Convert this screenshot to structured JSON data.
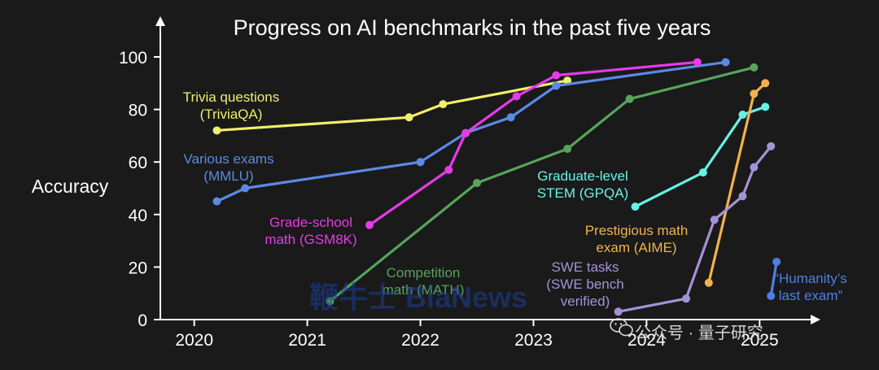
{
  "chart_data": {
    "type": "line",
    "title": "Progress on AI benchmarks in the past five years",
    "ylabel": "Accuracy",
    "xlabel": "",
    "xlim": [
      2019.7,
      2025.3
    ],
    "ylim": [
      0,
      100
    ],
    "x_ticks": [
      "2020",
      "2021",
      "2022",
      "2023",
      "2024",
      "2025"
    ],
    "y_ticks": [
      "0",
      "20",
      "40",
      "60",
      "80",
      "100"
    ],
    "grid": false,
    "series": [
      {
        "name": "Trivia questions\n(TriviaQA)",
        "color": "#f2ee6b",
        "points": [
          [
            2020.2,
            72
          ],
          [
            2021.9,
            77
          ],
          [
            2022.2,
            82
          ],
          [
            2023.3,
            91
          ]
        ]
      },
      {
        "name": "Various exams\n(MMLU)",
        "color": "#5b8ae6",
        "points": [
          [
            2020.2,
            45
          ],
          [
            2020.45,
            50
          ],
          [
            2022.0,
            60
          ],
          [
            2022.4,
            71
          ],
          [
            2022.8,
            77
          ],
          [
            2023.2,
            89
          ],
          [
            2024.7,
            98
          ]
        ]
      },
      {
        "name": "Grade-school\nmath (GSM8K)",
        "color": "#e63be6",
        "points": [
          [
            2021.55,
            36
          ],
          [
            2022.25,
            57
          ],
          [
            2022.4,
            71
          ],
          [
            2022.85,
            85
          ],
          [
            2023.2,
            93
          ],
          [
            2024.45,
            98
          ]
        ]
      },
      {
        "name": "Competition\nmath (MATH)",
        "color": "#56a55a",
        "points": [
          [
            2021.2,
            7
          ],
          [
            2022.5,
            52
          ],
          [
            2023.3,
            65
          ],
          [
            2023.85,
            84
          ],
          [
            2024.95,
            96
          ]
        ]
      },
      {
        "name": "Graduate-level\nSTEM (GPQA)",
        "color": "#66f2e6",
        "points": [
          [
            2023.9,
            43
          ],
          [
            2024.5,
            56
          ],
          [
            2024.85,
            78
          ],
          [
            2025.05,
            81
          ]
        ]
      },
      {
        "name": "Prestigious math\nexam (AIME)",
        "color": "#f2b24d",
        "points": [
          [
            2024.55,
            14
          ],
          [
            2024.95,
            86
          ],
          [
            2025.05,
            90
          ]
        ]
      },
      {
        "name": "SWE tasks\n(SWE bench\nverified)",
        "color": "#a492d6",
        "points": [
          [
            2023.75,
            3
          ],
          [
            2024.35,
            8
          ],
          [
            2024.6,
            38
          ],
          [
            2024.85,
            47
          ],
          [
            2024.95,
            58
          ],
          [
            2025.1,
            66
          ]
        ]
      },
      {
        "name": "“Humanity’s\nlast exam”",
        "color": "#4d7fe6",
        "points": [
          [
            2025.1,
            9
          ],
          [
            2025.15,
            22
          ]
        ]
      }
    ]
  },
  "watermarks": {
    "blue": "鞭牛士 BiaNews",
    "cn": "公众号 · 量子研究",
    "cn_icon": "wechat-icon"
  }
}
